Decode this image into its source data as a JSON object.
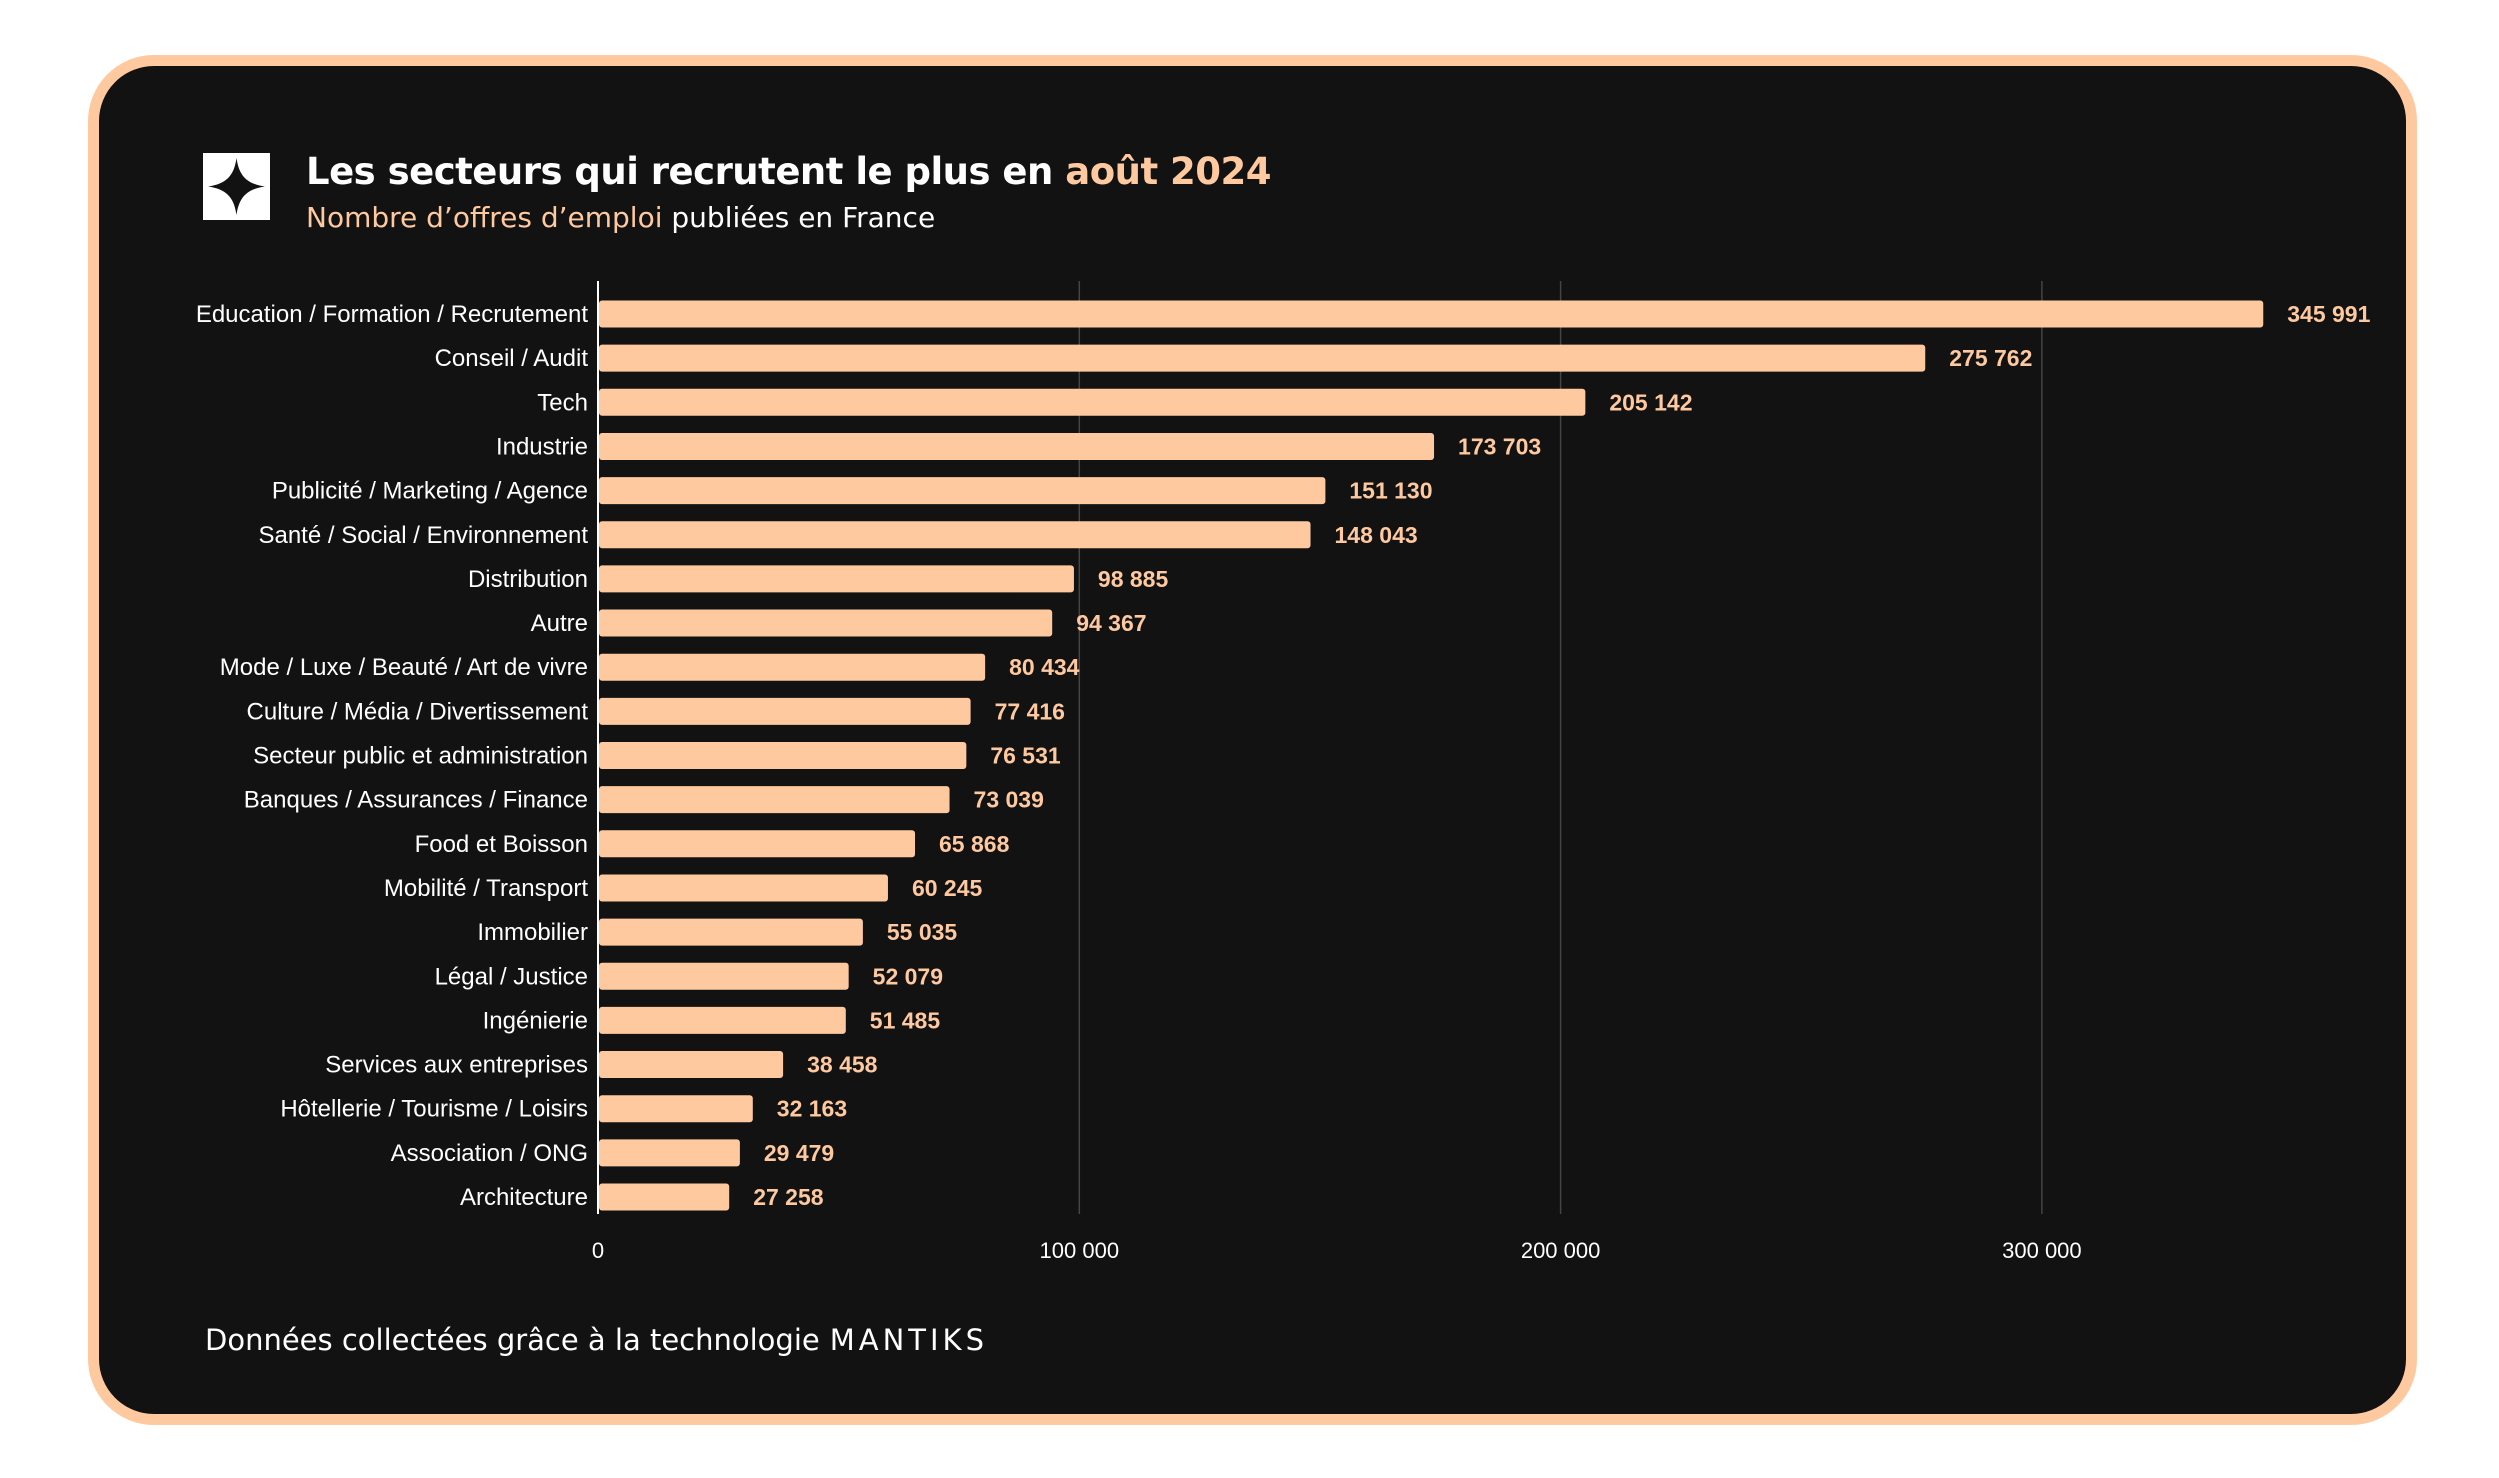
{
  "header": {
    "title_main": "Les secteurs qui recrutent le plus en",
    "title_highlight": "août 2024",
    "subtitle_highlight": "Nombre d’offres d’emploi",
    "subtitle_rest": "publiées en France"
  },
  "footer": {
    "text": "Données collectées grâce à la technologie",
    "brand": "MANTIKS"
  },
  "colors": {
    "background": "#121212",
    "border": "#ffc9a0",
    "bar": "#ffc9a0",
    "grid": "#444444",
    "text": "#ffffff"
  },
  "logo_icon": "four-point-star-icon",
  "chart_data": {
    "type": "bar",
    "orientation": "horizontal",
    "categories": [
      "Education / Formation / Recrutement",
      "Conseil / Audit",
      "Tech",
      "Industrie",
      "Publicité / Marketing / Agence",
      "Santé / Social / Environnement",
      "Distribution",
      "Autre",
      "Mode / Luxe / Beauté / Art de vivre",
      "Culture / Média / Divertissement",
      "Secteur public et administration",
      "Banques / Assurances / Finance",
      "Food et Boisson",
      "Mobilité / Transport",
      "Immobilier",
      "Légal / Justice",
      "Ingénierie",
      "Services aux entreprises",
      "Hôtellerie / Tourisme / Loisirs",
      "Association / ONG",
      "Architecture"
    ],
    "values": [
      345991,
      275762,
      205142,
      173703,
      151130,
      148043,
      98885,
      94367,
      80434,
      77416,
      76531,
      73039,
      65868,
      60245,
      55035,
      52079,
      51485,
      38458,
      32163,
      29479,
      27258
    ],
    "value_labels": [
      "345 991",
      "275 762",
      "205 142",
      "173 703",
      "151 130",
      "148 043",
      "98 885",
      "94 367",
      "80 434",
      "77 416",
      "76 531",
      "73 039",
      "65 868",
      "60 245",
      "55 035",
      "52 079",
      "51 485",
      "38 458",
      "32 163",
      "29 479",
      "27 258"
    ],
    "xticks": [
      0,
      100000,
      200000,
      300000
    ],
    "xtick_labels": [
      "0",
      "100 000",
      "200 000",
      "300 000"
    ],
    "xlim": [
      0,
      366000
    ],
    "grid": true,
    "legend": "none"
  }
}
